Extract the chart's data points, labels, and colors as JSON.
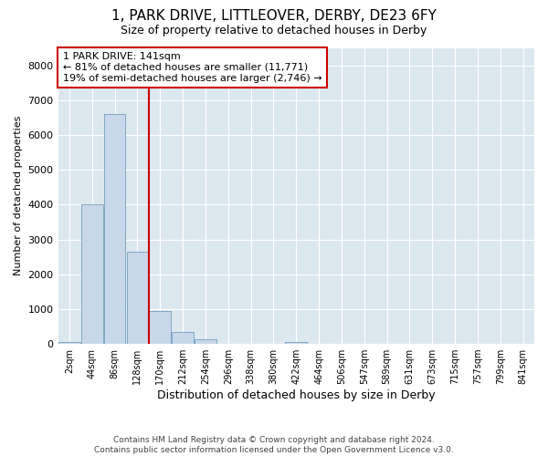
{
  "title1": "1, PARK DRIVE, LITTLEOVER, DERBY, DE23 6FY",
  "title2": "Size of property relative to detached houses in Derby",
  "xlabel": "Distribution of detached houses by size in Derby",
  "ylabel": "Number of detached properties",
  "annotation_line1": "1 PARK DRIVE: 141sqm",
  "annotation_line2": "← 81% of detached houses are smaller (11,771)",
  "annotation_line3": "19% of semi-detached houses are larger (2,746) →",
  "footer1": "Contains HM Land Registry data © Crown copyright and database right 2024.",
  "footer2": "Contains public sector information licensed under the Open Government Licence v3.0.",
  "bar_color": "#c8d8ea",
  "bar_edge_color": "#6090b0",
  "red_line_color": "#cc0000",
  "annotation_box_edge_color": "#cc0000",
  "background_color": "#dce8f0",
  "grid_color": "#ffffff",
  "categories": [
    "2sqm",
    "44sqm",
    "86sqm",
    "128sqm",
    "170sqm",
    "212sqm",
    "254sqm",
    "296sqm",
    "338sqm",
    "380sqm",
    "422sqm",
    "464sqm",
    "506sqm",
    "547sqm",
    "589sqm",
    "631sqm",
    "673sqm",
    "715sqm",
    "757sqm",
    "799sqm",
    "841sqm"
  ],
  "values": [
    50,
    4000,
    6600,
    2650,
    950,
    330,
    130,
    0,
    0,
    0,
    50,
    0,
    0,
    0,
    0,
    0,
    0,
    0,
    0,
    0,
    0
  ],
  "ylim": [
    0,
    8500
  ],
  "yticks": [
    0,
    1000,
    2000,
    3000,
    4000,
    5000,
    6000,
    7000,
    8000
  ],
  "red_line_x": 3.5
}
